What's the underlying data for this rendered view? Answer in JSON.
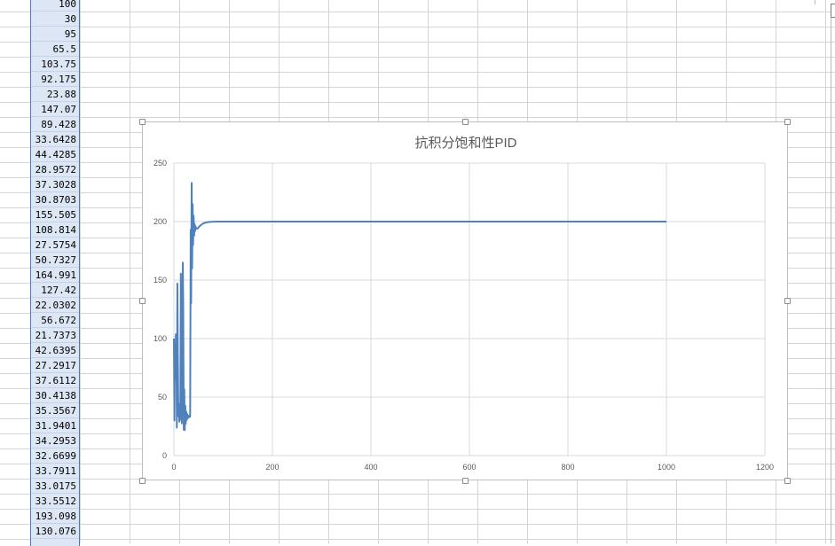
{
  "sheet": {
    "column_values": [
      "100",
      "30",
      "95",
      "65.5",
      "103.75",
      "92.175",
      "23.88",
      "147.07",
      "89.428",
      "33.6428",
      "44.4285",
      "28.9572",
      "37.3028",
      "30.8703",
      "155.505",
      "108.814",
      "27.5754",
      "50.7327",
      "164.991",
      "127.42",
      "22.0302",
      "56.672",
      "21.7373",
      "42.6395",
      "27.2917",
      "37.6112",
      "30.4138",
      "35.3567",
      "31.9401",
      "34.2953",
      "32.6699",
      "33.7911",
      "33.0175",
      "33.5512",
      "193.098",
      "130.076"
    ]
  },
  "chart_data": {
    "type": "scatter",
    "title": "抗积分饱和性PID",
    "xlim": [
      0,
      1200
    ],
    "ylim": [
      0,
      250
    ],
    "x_ticks": [
      "0",
      "200",
      "400",
      "600",
      "800",
      "1000",
      "1200"
    ],
    "y_ticks": [
      "0",
      "50",
      "100",
      "150",
      "200",
      "250"
    ],
    "grid": true,
    "line_color": "#4f81bd",
    "series": [
      {
        "x": [
          0,
          1,
          2,
          3,
          4,
          5,
          6,
          7,
          8,
          9,
          10,
          11,
          12,
          13,
          14,
          15,
          16,
          17,
          18,
          19,
          20,
          21,
          22,
          23,
          24,
          25,
          26,
          27,
          28,
          29,
          30,
          31,
          32,
          33,
          34,
          35,
          36,
          37,
          38,
          39,
          40,
          41,
          42,
          43,
          44,
          45,
          48,
          52,
          56,
          60,
          65,
          70,
          80,
          90,
          100,
          150,
          200,
          400,
          600,
          800,
          1000
        ],
        "y": [
          100,
          30,
          95,
          65.5,
          103.75,
          92.175,
          23.88,
          147.07,
          89.428,
          33.6428,
          44.4285,
          28.9572,
          37.3028,
          30.8703,
          155.505,
          108.814,
          27.5754,
          50.7327,
          164.991,
          127.42,
          22.0302,
          56.672,
          21.7373,
          42.6395,
          27.2917,
          37.6112,
          30.4138,
          35.3567,
          31.9401,
          34.2953,
          32.6699,
          33.7911,
          33.0175,
          33.5512,
          193.098,
          130.076,
          233,
          160,
          215,
          180,
          205,
          188,
          198,
          192,
          196,
          194,
          194,
          196,
          197.5,
          198.5,
          199.2,
          199.6,
          199.9,
          200,
          200,
          200,
          200,
          200,
          200,
          200,
          200
        ]
      }
    ]
  }
}
